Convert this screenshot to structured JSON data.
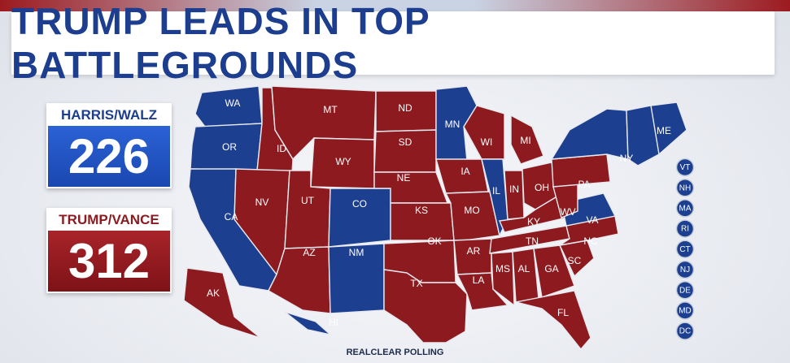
{
  "title": "TRUMP LEADS IN TOP BATTLEGROUNDS",
  "tallies": {
    "harris": {
      "label": "HARRIS/WALZ",
      "value": "226",
      "color": "#1c3f8f"
    },
    "trump": {
      "label": "TRUMP/VANCE",
      "value": "312",
      "color": "#8c1a1f"
    }
  },
  "source": "REALCLEAR POLLING",
  "legend_colors": {
    "dem": "#1c3f8f",
    "rep": "#8c1a1f"
  },
  "states": [
    {
      "abbr": "WA",
      "party": "dem"
    },
    {
      "abbr": "OR",
      "party": "dem"
    },
    {
      "abbr": "CA",
      "party": "dem"
    },
    {
      "abbr": "ID",
      "party": "rep"
    },
    {
      "abbr": "NV",
      "party": "rep"
    },
    {
      "abbr": "MT",
      "party": "rep"
    },
    {
      "abbr": "WY",
      "party": "rep"
    },
    {
      "abbr": "UT",
      "party": "rep"
    },
    {
      "abbr": "AZ",
      "party": "rep"
    },
    {
      "abbr": "CO",
      "party": "dem"
    },
    {
      "abbr": "NM",
      "party": "dem"
    },
    {
      "abbr": "ND",
      "party": "rep"
    },
    {
      "abbr": "SD",
      "party": "rep"
    },
    {
      "abbr": "NE",
      "party": "rep"
    },
    {
      "abbr": "KS",
      "party": "rep"
    },
    {
      "abbr": "OK",
      "party": "rep"
    },
    {
      "abbr": "TX",
      "party": "rep"
    },
    {
      "abbr": "MN",
      "party": "dem"
    },
    {
      "abbr": "IA",
      "party": "rep"
    },
    {
      "abbr": "MO",
      "party": "rep"
    },
    {
      "abbr": "AR",
      "party": "rep"
    },
    {
      "abbr": "LA",
      "party": "rep"
    },
    {
      "abbr": "WI",
      "party": "rep"
    },
    {
      "abbr": "IL",
      "party": "dem"
    },
    {
      "abbr": "MI",
      "party": "rep"
    },
    {
      "abbr": "IN",
      "party": "rep"
    },
    {
      "abbr": "OH",
      "party": "rep"
    },
    {
      "abbr": "KY",
      "party": "rep"
    },
    {
      "abbr": "TN",
      "party": "rep"
    },
    {
      "abbr": "MS",
      "party": "rep"
    },
    {
      "abbr": "AL",
      "party": "rep"
    },
    {
      "abbr": "GA",
      "party": "rep"
    },
    {
      "abbr": "FL",
      "party": "rep"
    },
    {
      "abbr": "SC",
      "party": "rep"
    },
    {
      "abbr": "NC",
      "party": "rep"
    },
    {
      "abbr": "VA",
      "party": "dem"
    },
    {
      "abbr": "WV",
      "party": "rep"
    },
    {
      "abbr": "PA",
      "party": "rep"
    },
    {
      "abbr": "NY",
      "party": "dem"
    },
    {
      "abbr": "ME",
      "party": "dem"
    },
    {
      "abbr": "AK",
      "party": "rep"
    },
    {
      "abbr": "HI",
      "party": "dem"
    }
  ],
  "small_states": [
    "VT",
    "NH",
    "MA",
    "RI",
    "CT",
    "NJ",
    "DE",
    "MD",
    "DC"
  ]
}
